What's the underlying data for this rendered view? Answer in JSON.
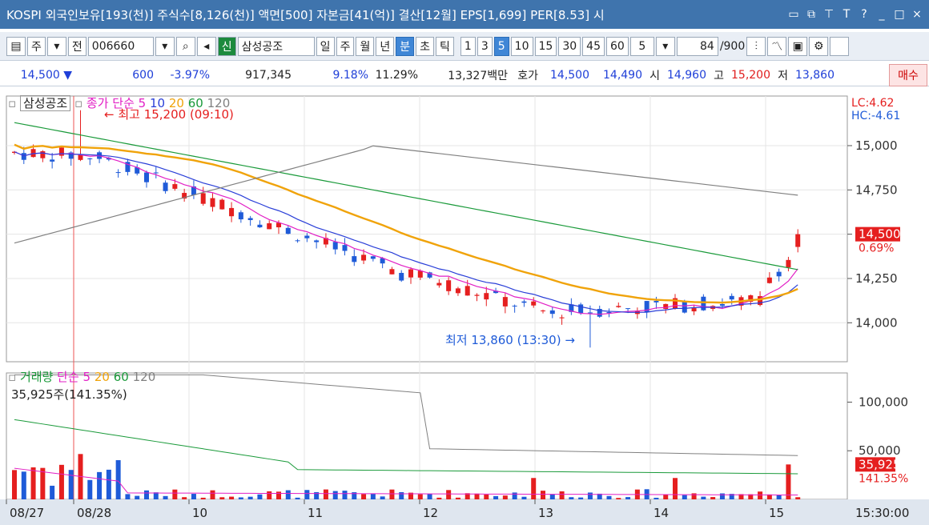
{
  "title": "KOSPI 외국인보유[193(천)] 주식수[8,126(천)] 액면[500] 자본금[41(억)] 결산[12월] EPS[1,699] PER[8.53] 시",
  "titlebar_icons": [
    "restore-icon",
    "duplicate-icon",
    "pin-icon",
    "font-icon",
    "help-icon",
    "minimize-icon",
    "maximize-icon",
    "close-icon"
  ],
  "toolbar": {
    "market_select": "주",
    "all_label": "전",
    "code": "006660",
    "new_badge": "신",
    "stock_name": "삼성공조",
    "periods": [
      "일",
      "주",
      "월",
      "년",
      "분",
      "초",
      "틱"
    ],
    "active_period": "분",
    "minutes": [
      "1",
      "3",
      "5",
      "10",
      "15",
      "30",
      "45",
      "60"
    ],
    "active_minute": "5",
    "interval_value": "5",
    "count_value": "84",
    "count_total": "/900"
  },
  "info": {
    "price": "14,500",
    "arrow": "▼",
    "change": "600",
    "change_pct": "-3.97%",
    "volume": "917,345",
    "pct1": "9.18%",
    "pct2": "11.29%",
    "amount": "13,327백만",
    "hoga_label": "호가",
    "ask": "14,500",
    "bid": "14,490",
    "open_label": "시",
    "open": "14,960",
    "high_label": "고",
    "high": "15,200",
    "low_label": "저",
    "low": "13,860",
    "buy_button": "매수"
  },
  "price_legend": {
    "name": "삼성공조",
    "close_label": "종가",
    "ma_label": "단순",
    "periods": [
      "5",
      "10",
      "20",
      "60",
      "120"
    ]
  },
  "vol_legend": {
    "name": "거래량",
    "ma_label": "단순",
    "periods": [
      "5",
      "20",
      "60",
      "120"
    ],
    "current": "35,925주(141.35%)"
  },
  "annotations": {
    "high": "최고 15,200 (09:10)",
    "low": "최저 13,860 (13:30)",
    "lc": "LC:4.62",
    "hc": "HC:-4.61",
    "last_price": "14,500",
    "last_pct": "0.69%",
    "vol_last": "35,925",
    "vol_pct": "141.35%"
  },
  "colors": {
    "up": "#e51f1f",
    "down": "#1f5bd8",
    "ma5": "#e21fc5",
    "ma10": "#2a3fd8",
    "ma20": "#f0a30a",
    "ma60": "#1a9a3a",
    "ma120": "#808080"
  },
  "chart_data": {
    "type": "candlestick",
    "x_labels": [
      "08/27",
      "08/28",
      "10",
      "11",
      "12",
      "13",
      "14",
      "15",
      "15:30:00"
    ],
    "y_ticks": [
      15000,
      14750,
      14500,
      14250,
      14000
    ],
    "vol_ticks": [
      "100,000",
      "50,000"
    ],
    "ylim": [
      13780,
      15280
    ]
  }
}
